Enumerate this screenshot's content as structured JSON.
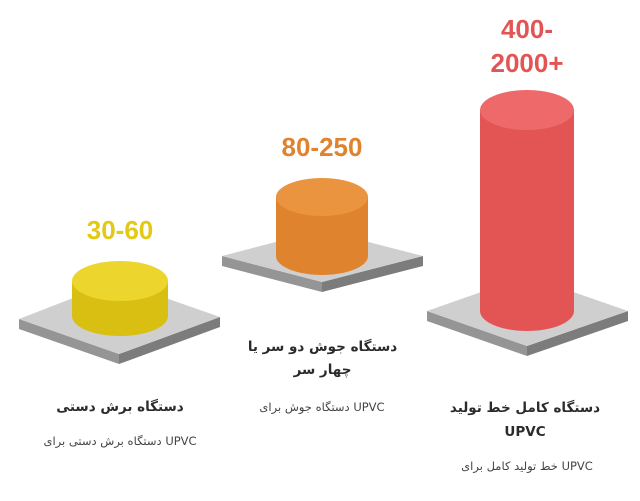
{
  "items": [
    {
      "value": "30-60",
      "title": "دستگاه برش دستی",
      "desc": "UPVC دستگاه برش دستی برای",
      "color": "#e3c916"
    },
    {
      "value": "80-250",
      "title": "دستگاه جوش دو سر یا چهار سر",
      "desc": "UPVC دستگاه جوش برای",
      "color": "#e0832f"
    },
    {
      "value": "400-\n2000+",
      "title": "دستگاه کامل خط تولید UPVC",
      "desc": "UPVC خط تولید کامل برای",
      "color": "#e35555"
    }
  ]
}
